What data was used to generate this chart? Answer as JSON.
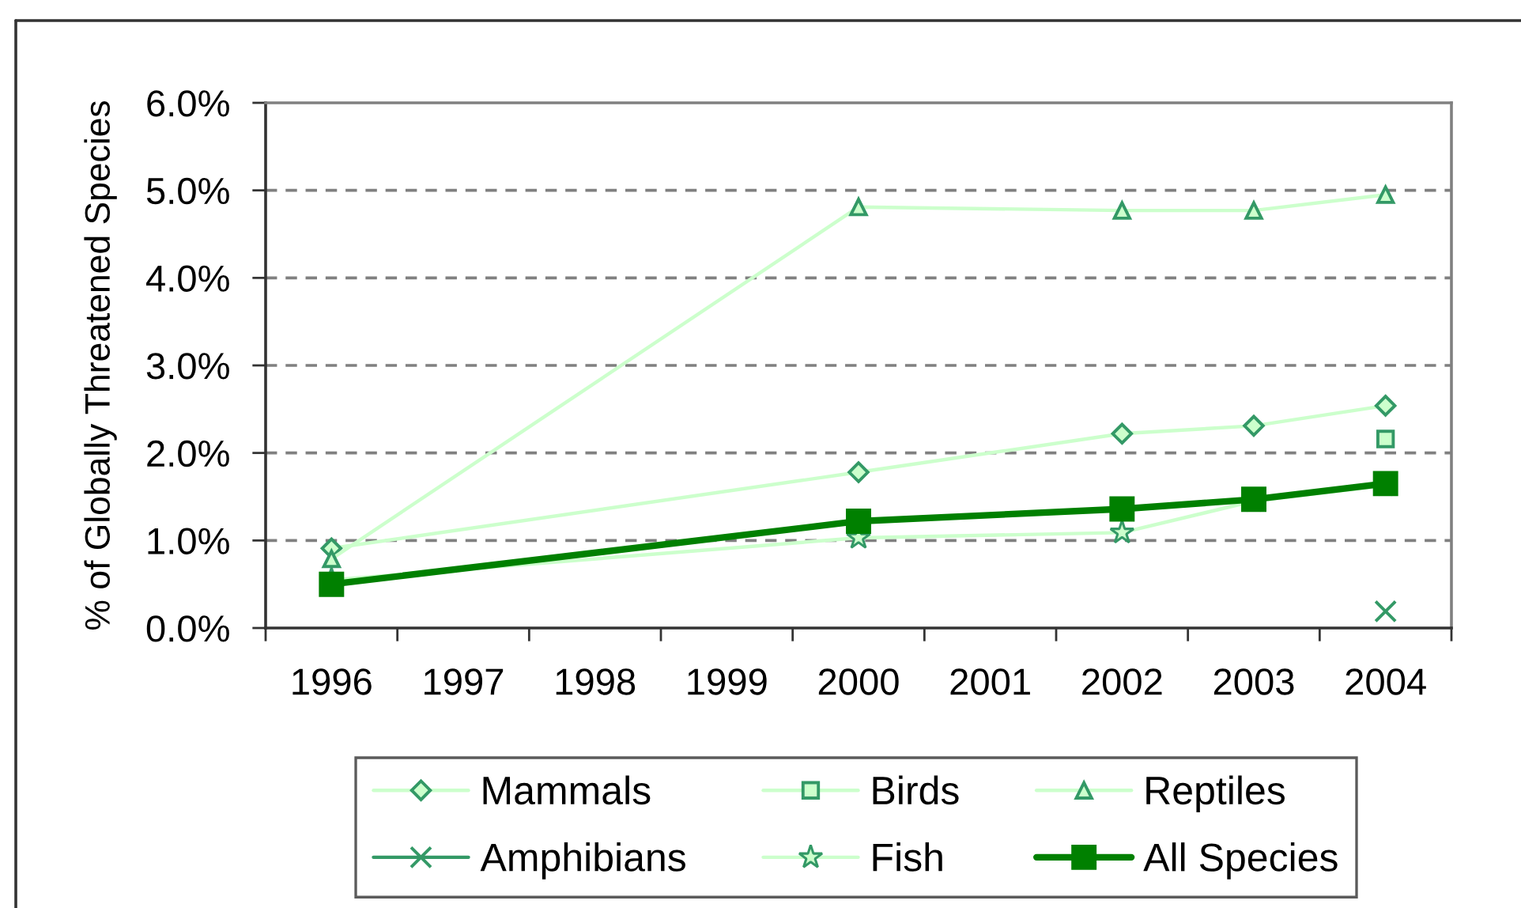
{
  "chart_data": {
    "type": "line",
    "ylabel": "% of Globally Threatened Species",
    "x": [
      1996,
      2000,
      2002,
      2003,
      2004
    ],
    "xlim": [
      1995.5,
      2004.5
    ],
    "xticks": [
      {
        "value": 1995.5,
        "label": null
      },
      1996,
      {
        "value": 1996.5,
        "label": null
      },
      1997,
      {
        "value": 1997.5,
        "label": null
      },
      1998,
      {
        "value": 1998.5,
        "label": null
      },
      1999,
      {
        "value": 1999.5,
        "label": null
      },
      2000,
      {
        "value": 2000.5,
        "label": null
      },
      2001,
      {
        "value": 2001.5,
        "label": null
      },
      2002,
      {
        "value": 2002.5,
        "label": null
      },
      2003,
      {
        "value": 2003.5,
        "label": null
      },
      2004,
      {
        "value": 2004.5,
        "label": null
      }
    ],
    "ylim": [
      0,
      6
    ],
    "yticks": [
      {
        "value": 0,
        "label": "0.0%"
      },
      {
        "value": 1,
        "label": "1.0%"
      },
      {
        "value": 2,
        "label": "2.0%"
      },
      {
        "value": 3,
        "label": "3.0%"
      },
      {
        "value": 4,
        "label": "4.0%"
      },
      {
        "value": 5,
        "label": "5.0%"
      },
      {
        "value": 6,
        "label": "6.0%"
      }
    ],
    "grid": "y",
    "legend": "bottom",
    "series": [
      {
        "name": "Mammals",
        "color": "#ccffcc",
        "marker": "diamond",
        "values": [
          0.91,
          1.78,
          2.22,
          2.31,
          2.54
        ]
      },
      {
        "name": "Birds",
        "color": "#ccffcc",
        "marker": "square",
        "values": [
          null,
          null,
          null,
          null,
          2.16
        ]
      },
      {
        "name": "Reptiles",
        "color": "#ccffcc",
        "marker": "triangle",
        "values": [
          0.79,
          4.81,
          4.77,
          4.77,
          4.95
        ]
      },
      {
        "name": "Amphibians",
        "color": "#339966",
        "marker": "cross",
        "values": [
          null,
          null,
          null,
          null,
          0.19
        ]
      },
      {
        "name": "Fish",
        "color": "#ccffcc",
        "marker": "star",
        "values": [
          0.55,
          1.03,
          1.09,
          1.45,
          1.63
        ]
      },
      {
        "name": "All Species",
        "color": "#008000",
        "marker": "square",
        "values": [
          0.5,
          1.22,
          1.36,
          1.47,
          1.65
        ]
      }
    ]
  }
}
